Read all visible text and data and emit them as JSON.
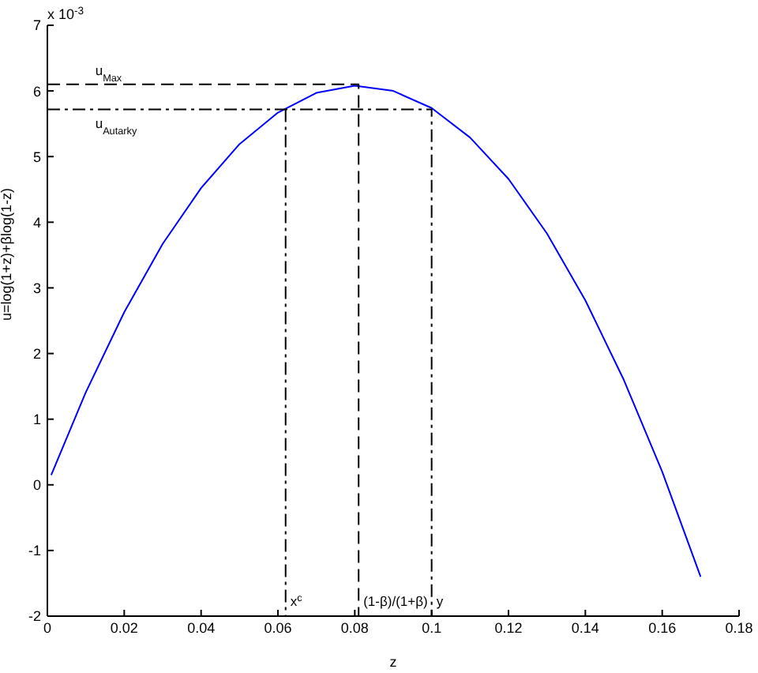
{
  "chart_data": {
    "type": "line",
    "xlabel": "z",
    "ylabel": "u=log(1+z)+βlog(1-z)",
    "annotations": [
      "x 10$^{-3}$",
      {
        "text": "u$_{Max}$",
        "x": 0.01,
        "y": 6.1
      },
      {
        "text": "u$_{Autarky}$",
        "x": 0.01,
        "y": 5.72
      },
      {
        "text": "x$^{c}$",
        "x": 0.062,
        "y": -1.75
      },
      {
        "text": "(1-β)/(1+β)",
        "x": 0.081,
        "y": -1.75
      },
      {
        "text": "y",
        "x": 0.1,
        "y": -1.75
      }
    ],
    "series": [
      {
        "color": "#0000ff",
        "line_style": "solid",
        "x": [
          0.001,
          0.01,
          0.02,
          0.03,
          0.04,
          0.05,
          0.06,
          0.07,
          0.08,
          0.09,
          0.1,
          0.11,
          0.12,
          0.13,
          0.14,
          0.15,
          0.16,
          0.17
        ],
        "values": [
          0.15,
          1.41,
          2.63,
          3.67,
          4.52,
          5.19,
          5.67,
          5.97,
          6.08,
          6.0,
          5.74,
          5.29,
          4.66,
          3.83,
          2.81,
          1.6,
          0.2,
          -1.4
        ]
      },
      {
        "color": "#000000",
        "line_style": "dashed",
        "x": [
          0,
          0.081,
          0.081
        ],
        "values": [
          6.1,
          6.1,
          -2
        ]
      },
      {
        "color": "#000000",
        "line_style": "dashdot",
        "x": [
          0,
          0.1,
          0.1
        ],
        "values": [
          5.72,
          5.72,
          -2
        ]
      },
      {
        "color": "#000000",
        "line_style": "dashdot",
        "x": [
          0.062,
          0.062
        ],
        "values": [
          5.72,
          -2
        ]
      }
    ],
    "xlim": [
      0,
      0.18
    ],
    "xticks": [
      0,
      0.02,
      0.04,
      0.06,
      0.08,
      0.1,
      0.12,
      0.14,
      0.16,
      0.18
    ],
    "ylim": [
      -2,
      7
    ],
    "yticks": [
      -2,
      -1,
      0,
      1,
      2,
      3,
      4,
      5,
      6,
      7
    ],
    "grid": false,
    "marker": "none"
  }
}
